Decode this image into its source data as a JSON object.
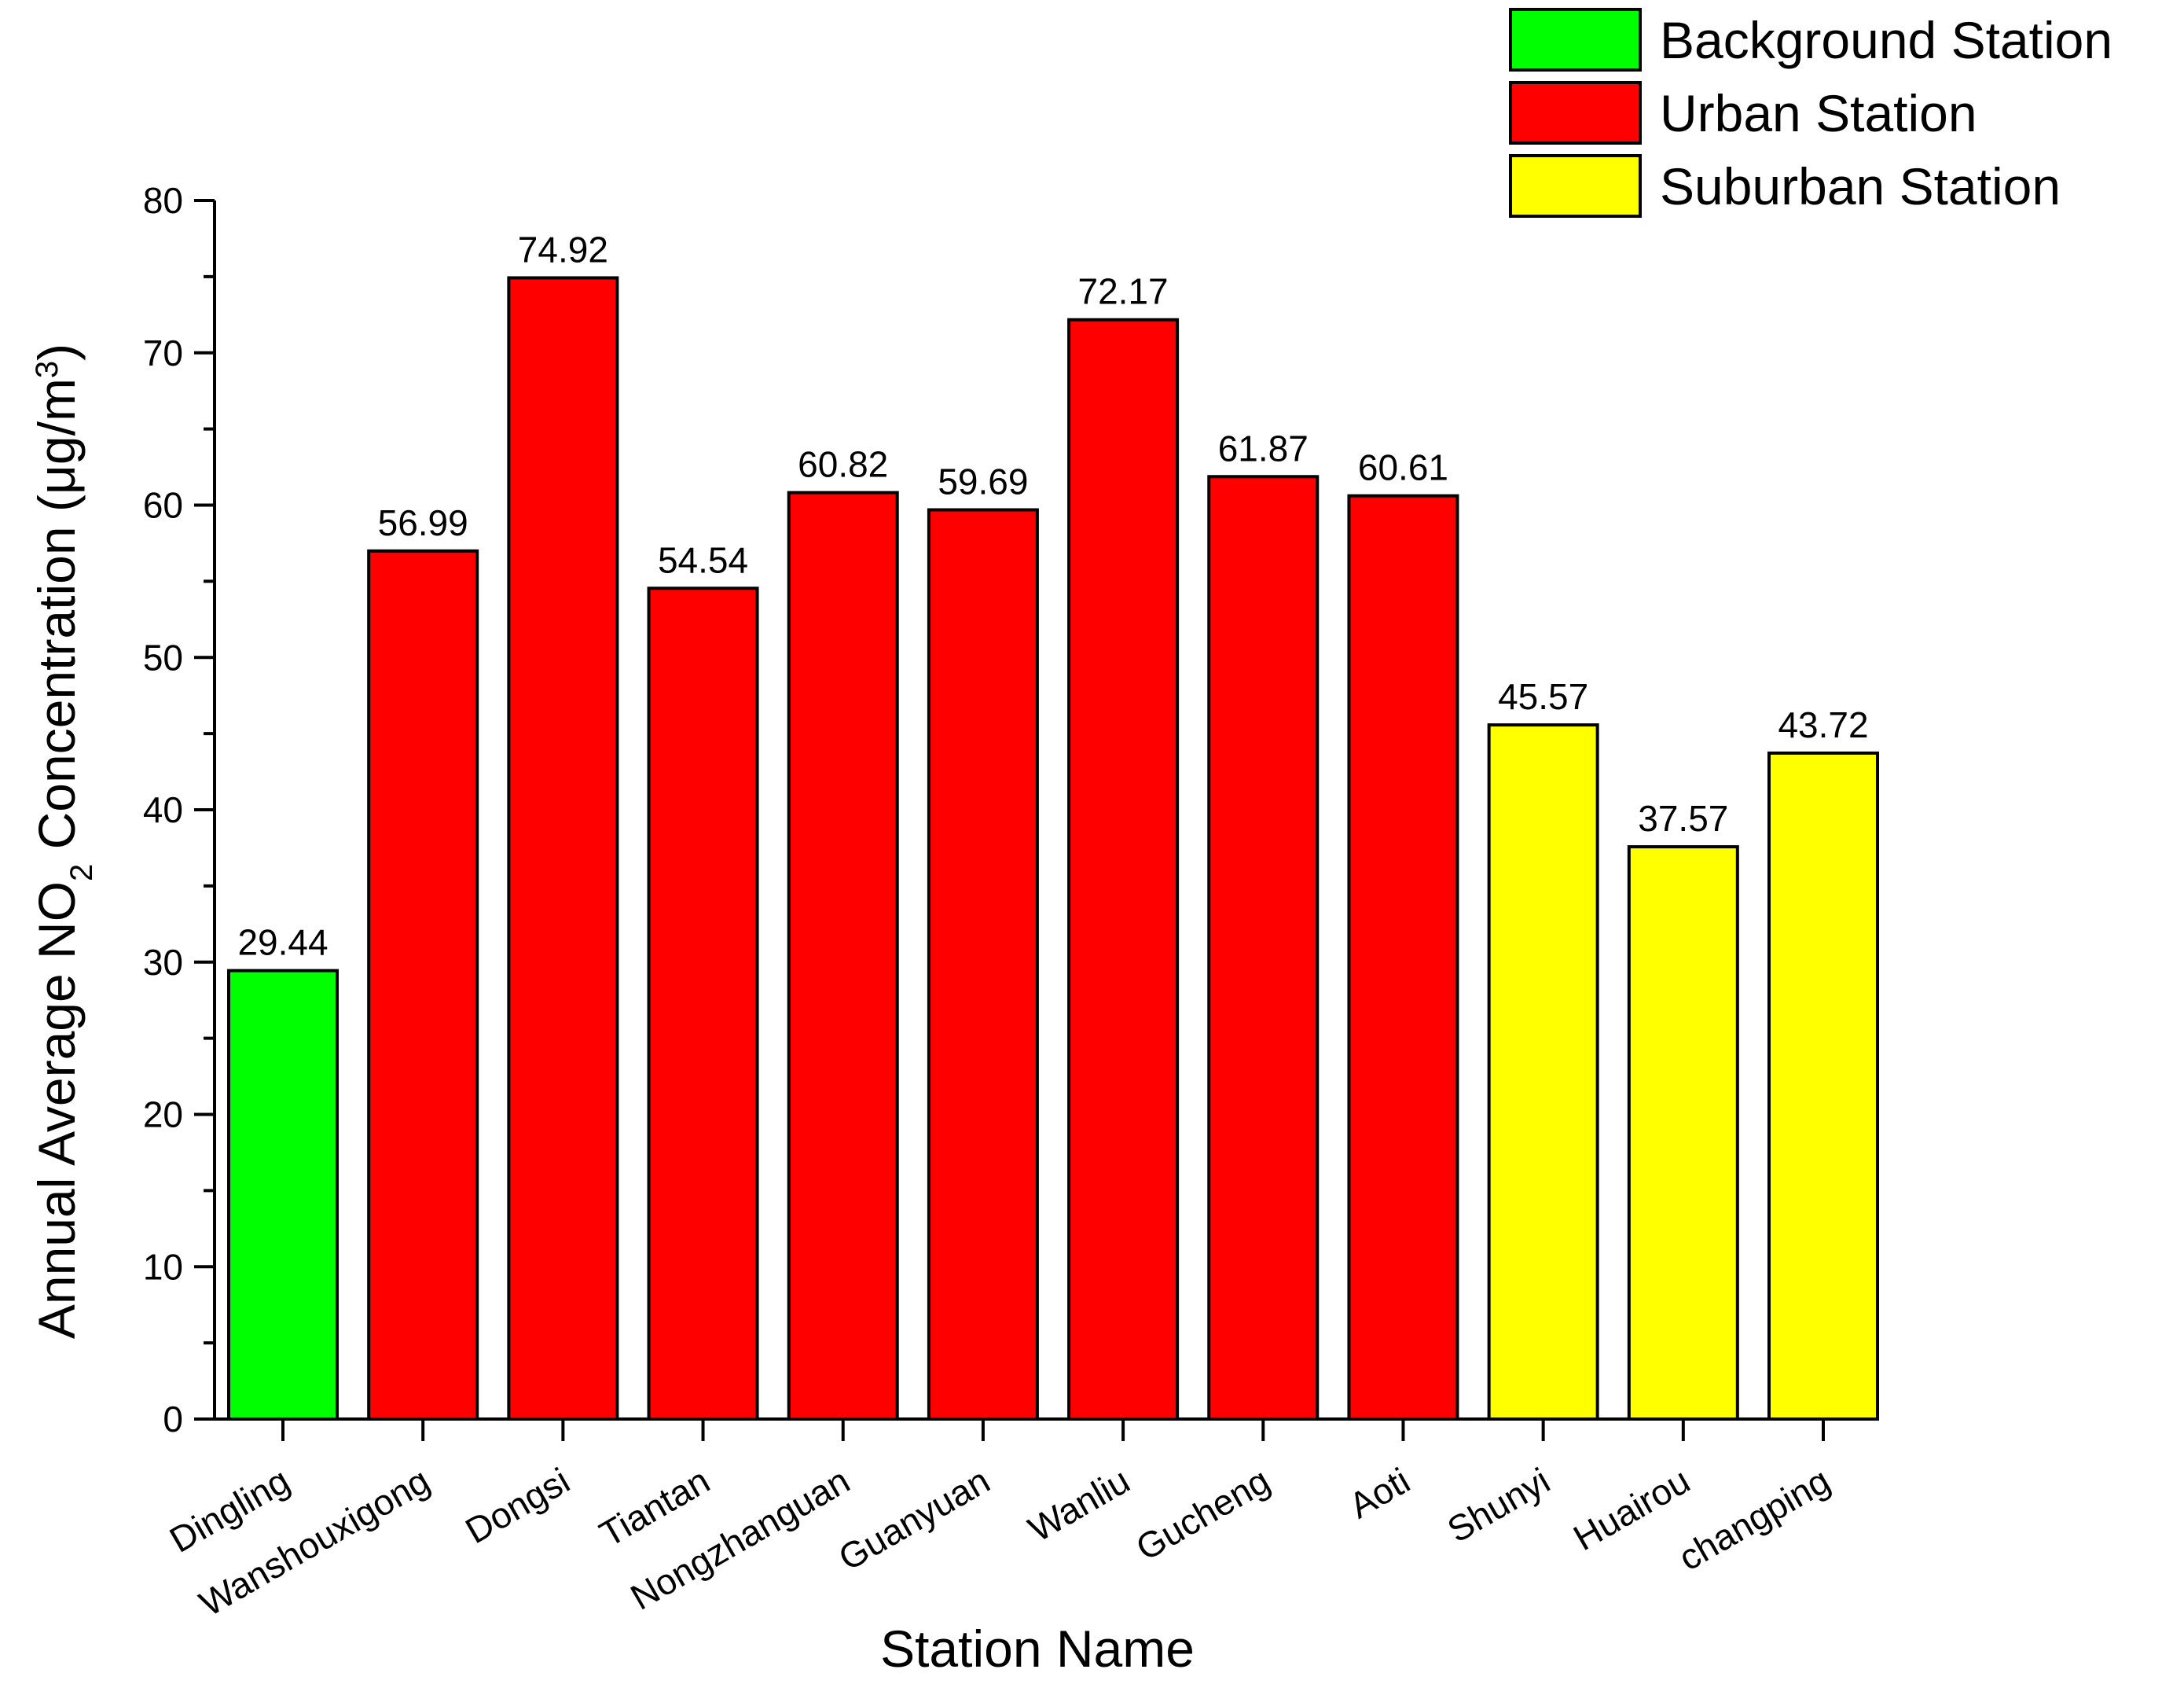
{
  "chart_data": {
    "type": "bar",
    "categories": [
      "Dingling",
      "Wanshouxigong",
      "Dongsi",
      "Tiantan",
      "Nongzhanguan",
      "Guanyuan",
      "Wanliu",
      "Gucheng",
      "Aoti",
      "Shunyi",
      "Huairou",
      "changping"
    ],
    "values": [
      29.44,
      56.99,
      74.92,
      54.54,
      60.82,
      59.69,
      72.17,
      61.87,
      60.61,
      45.57,
      37.57,
      43.72
    ],
    "value_labels": [
      "29.44",
      "56.99",
      "74.92",
      "54.54",
      "60.82",
      "59.69",
      "72.17",
      "61.87",
      "60.61",
      "45.57",
      "37.57",
      "43.72"
    ],
    "groups": [
      "Background Station",
      "Urban Station",
      "Urban Station",
      "Urban Station",
      "Urban Station",
      "Urban Station",
      "Urban Station",
      "Urban Station",
      "Urban Station",
      "Suburban Station",
      "Suburban Station",
      "Suburban Station"
    ],
    "legend": [
      {
        "label": "Background Station",
        "color": "#00ff00"
      },
      {
        "label": "Urban Station",
        "color": "#ff0000"
      },
      {
        "label": "Suburban Station",
        "color": "#ffff00"
      }
    ],
    "legend_position": "top-right",
    "xlabel": "Station Name",
    "ylabel": {
      "pre": "Annual Average NO",
      "sub": "2",
      "mid": " Concentration (μg/m",
      "sup": "3",
      "post": ")"
    },
    "ylim": [
      0,
      80
    ],
    "yticks": [
      0,
      10,
      20,
      30,
      40,
      50,
      60,
      70,
      80
    ],
    "ytick_labels": [
      "0",
      "10",
      "20",
      "30",
      "40",
      "50",
      "60",
      "70",
      "80"
    ],
    "grid": false
  }
}
